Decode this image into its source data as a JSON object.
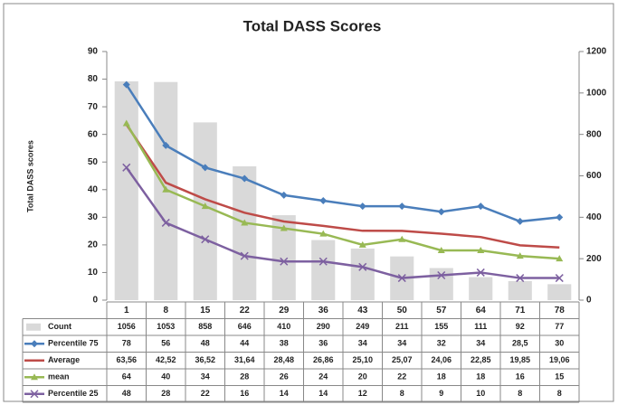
{
  "chart_data": {
    "type": "combo",
    "title": "Total DASS Scores",
    "ylabel": "Total DASS scores",
    "categories": [
      "1",
      "8",
      "15",
      "22",
      "29",
      "36",
      "43",
      "50",
      "57",
      "64",
      "71",
      "78"
    ],
    "ylim": [
      0,
      90
    ],
    "yticks": [
      0,
      10,
      20,
      30,
      40,
      50,
      60,
      70,
      80,
      90
    ],
    "y2lim": [
      0,
      1200
    ],
    "y2ticks": [
      0,
      200,
      400,
      600,
      800,
      1000,
      1200
    ],
    "data_table": true,
    "series": [
      {
        "name": "Count",
        "type": "bar",
        "axis": "y2",
        "color": "#d9d9d9",
        "values": [
          1056,
          1053,
          858,
          646,
          410,
          290,
          249,
          211,
          155,
          111,
          92,
          77
        ]
      },
      {
        "name": "Percentile 75",
        "type": "line",
        "marker": "diamond",
        "color": "#4a7ebb",
        "values": [
          78,
          56,
          48,
          44,
          38,
          36,
          34,
          34,
          32,
          34,
          28.5,
          30
        ],
        "value_labels": [
          "78",
          "56",
          "48",
          "44",
          "38",
          "36",
          "34",
          "34",
          "32",
          "34",
          "28,5",
          "30"
        ]
      },
      {
        "name": "Average",
        "type": "line",
        "marker": "none",
        "color": "#be4b48",
        "values": [
          63.56,
          42.52,
          36.52,
          31.64,
          28.48,
          26.86,
          25.1,
          25.07,
          24.06,
          22.85,
          19.85,
          19.06
        ],
        "value_labels": [
          "63,56",
          "42,52",
          "36,52",
          "31,64",
          "28,48",
          "26,86",
          "25,10",
          "25,07",
          "24,06",
          "22,85",
          "19,85",
          "19,06"
        ]
      },
      {
        "name": "mean",
        "type": "line",
        "marker": "triangle",
        "color": "#98b954",
        "values": [
          64,
          40,
          34,
          28,
          26,
          24,
          20,
          22,
          18,
          18,
          16,
          15
        ]
      },
      {
        "name": "Percentile 25",
        "type": "line",
        "marker": "x",
        "color": "#7d60a0",
        "values": [
          48,
          28,
          22,
          16,
          14,
          14,
          12,
          8,
          9,
          10,
          8,
          8
        ]
      }
    ]
  }
}
